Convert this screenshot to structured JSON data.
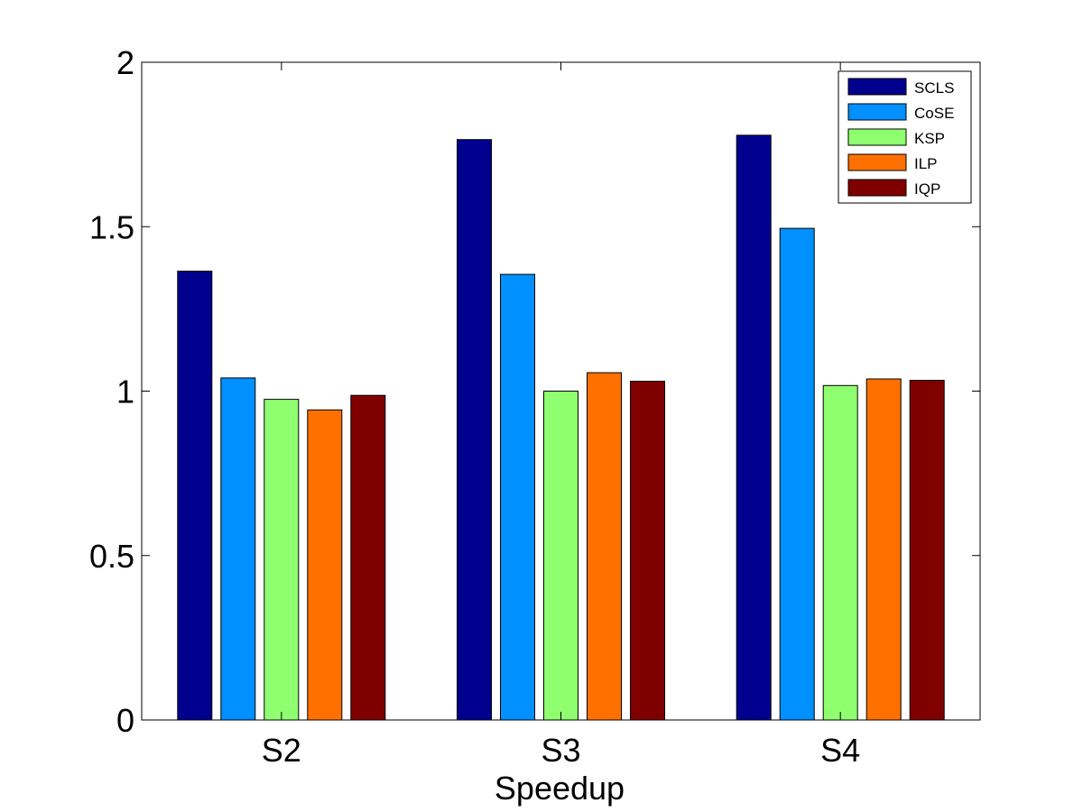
{
  "chart_data": {
    "type": "bar",
    "title": "",
    "xlabel": "Speedup",
    "ylabel": "",
    "categories": [
      "S2",
      "S3",
      "S4"
    ],
    "ylim": [
      0,
      2
    ],
    "yticks": [
      0,
      0.5,
      1,
      1.5,
      2
    ],
    "ytick_labels": [
      "0",
      "0.5",
      "1",
      "1.5",
      "2"
    ],
    "grid": false,
    "legend_position": "top-right",
    "series": [
      {
        "name": "SCLS",
        "color": "#00008f",
        "values": [
          1.365,
          1.765,
          1.778
        ]
      },
      {
        "name": "CoSE",
        "color": "#0090ff",
        "values": [
          1.04,
          1.355,
          1.495
        ]
      },
      {
        "name": "KSP",
        "color": "#8fff70",
        "values": [
          0.975,
          1.0,
          1.017
        ]
      },
      {
        "name": "ILP",
        "color": "#ff7000",
        "values": [
          0.943,
          1.056,
          1.037
        ]
      },
      {
        "name": "IQP",
        "color": "#800000",
        "values": [
          0.987,
          1.03,
          1.033
        ]
      }
    ]
  }
}
